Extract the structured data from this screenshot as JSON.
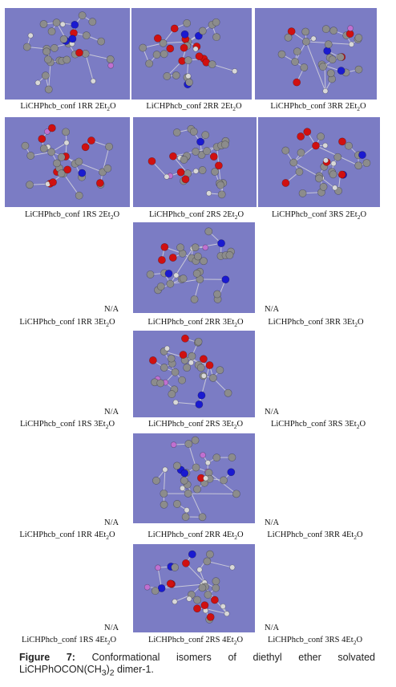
{
  "figure": {
    "label_prefix": "LiCHPhcb_conf ",
    "subscript_digit": "2",
    "rows": [
      {
        "cells": [
          {
            "text": "1RR 2Et",
            "suffix": "O",
            "na": false
          },
          {
            "text": "2RR 2Et",
            "suffix": "O",
            "na": false
          },
          {
            "text": "3RR 2Et",
            "suffix": "O",
            "na": false
          }
        ]
      },
      {
        "cells": [
          {
            "text": "1RS 2Et",
            "suffix": "O",
            "na": false
          },
          {
            "text": "2RS 2Et",
            "suffix": "O",
            "na": false
          },
          {
            "text": "3RS 2Et",
            "suffix": "O",
            "na": false
          }
        ]
      },
      {
        "cells": [
          {
            "text": "1RR 3Et",
            "suffix": "O",
            "na": true
          },
          {
            "text": "2RR 3Et",
            "suffix": "O",
            "na": false
          },
          {
            "text": "3RR 3Et",
            "suffix": "O",
            "na": true
          }
        ]
      },
      {
        "cells": [
          {
            "text": "1RS 3Et",
            "suffix": "O",
            "na": true
          },
          {
            "text": "2RS 3Et",
            "suffix": "O",
            "na": false
          },
          {
            "text": "3RS 3Et",
            "suffix": "O",
            "na": true
          }
        ]
      },
      {
        "cells": [
          {
            "text": "1RR 4Et",
            "suffix": "O",
            "na": true
          },
          {
            "text": "2RR 4Et",
            "suffix": "O",
            "na": false
          },
          {
            "text": "3RR 4Et",
            "suffix": "O",
            "na": true
          }
        ]
      },
      {
        "cells": [
          {
            "text": "1RS 4Et",
            "suffix": "O",
            "na": true
          },
          {
            "text": "2RS 4Et",
            "suffix": "O",
            "na": false
          },
          {
            "text": "3RS 4Et",
            "suffix": "O",
            "na": true
          }
        ]
      }
    ],
    "na_text": "N/A",
    "atom_colors": {
      "carbon": "#8c8c8c",
      "oxygen": "#d01010",
      "nitrogen": "#1a1ad0",
      "lithium": "#c070d0",
      "hydrogen": "#d8d8d8"
    },
    "panel_color": "#7b7cc4"
  },
  "caption": {
    "label": "Figure 7:",
    "text_1": " Conformational isomers of diethyl ether solvated LiCHPhOCON(CH",
    "sub": "3",
    "text_2": ")",
    "sub2": "2",
    "text_3": " dimer-1."
  }
}
